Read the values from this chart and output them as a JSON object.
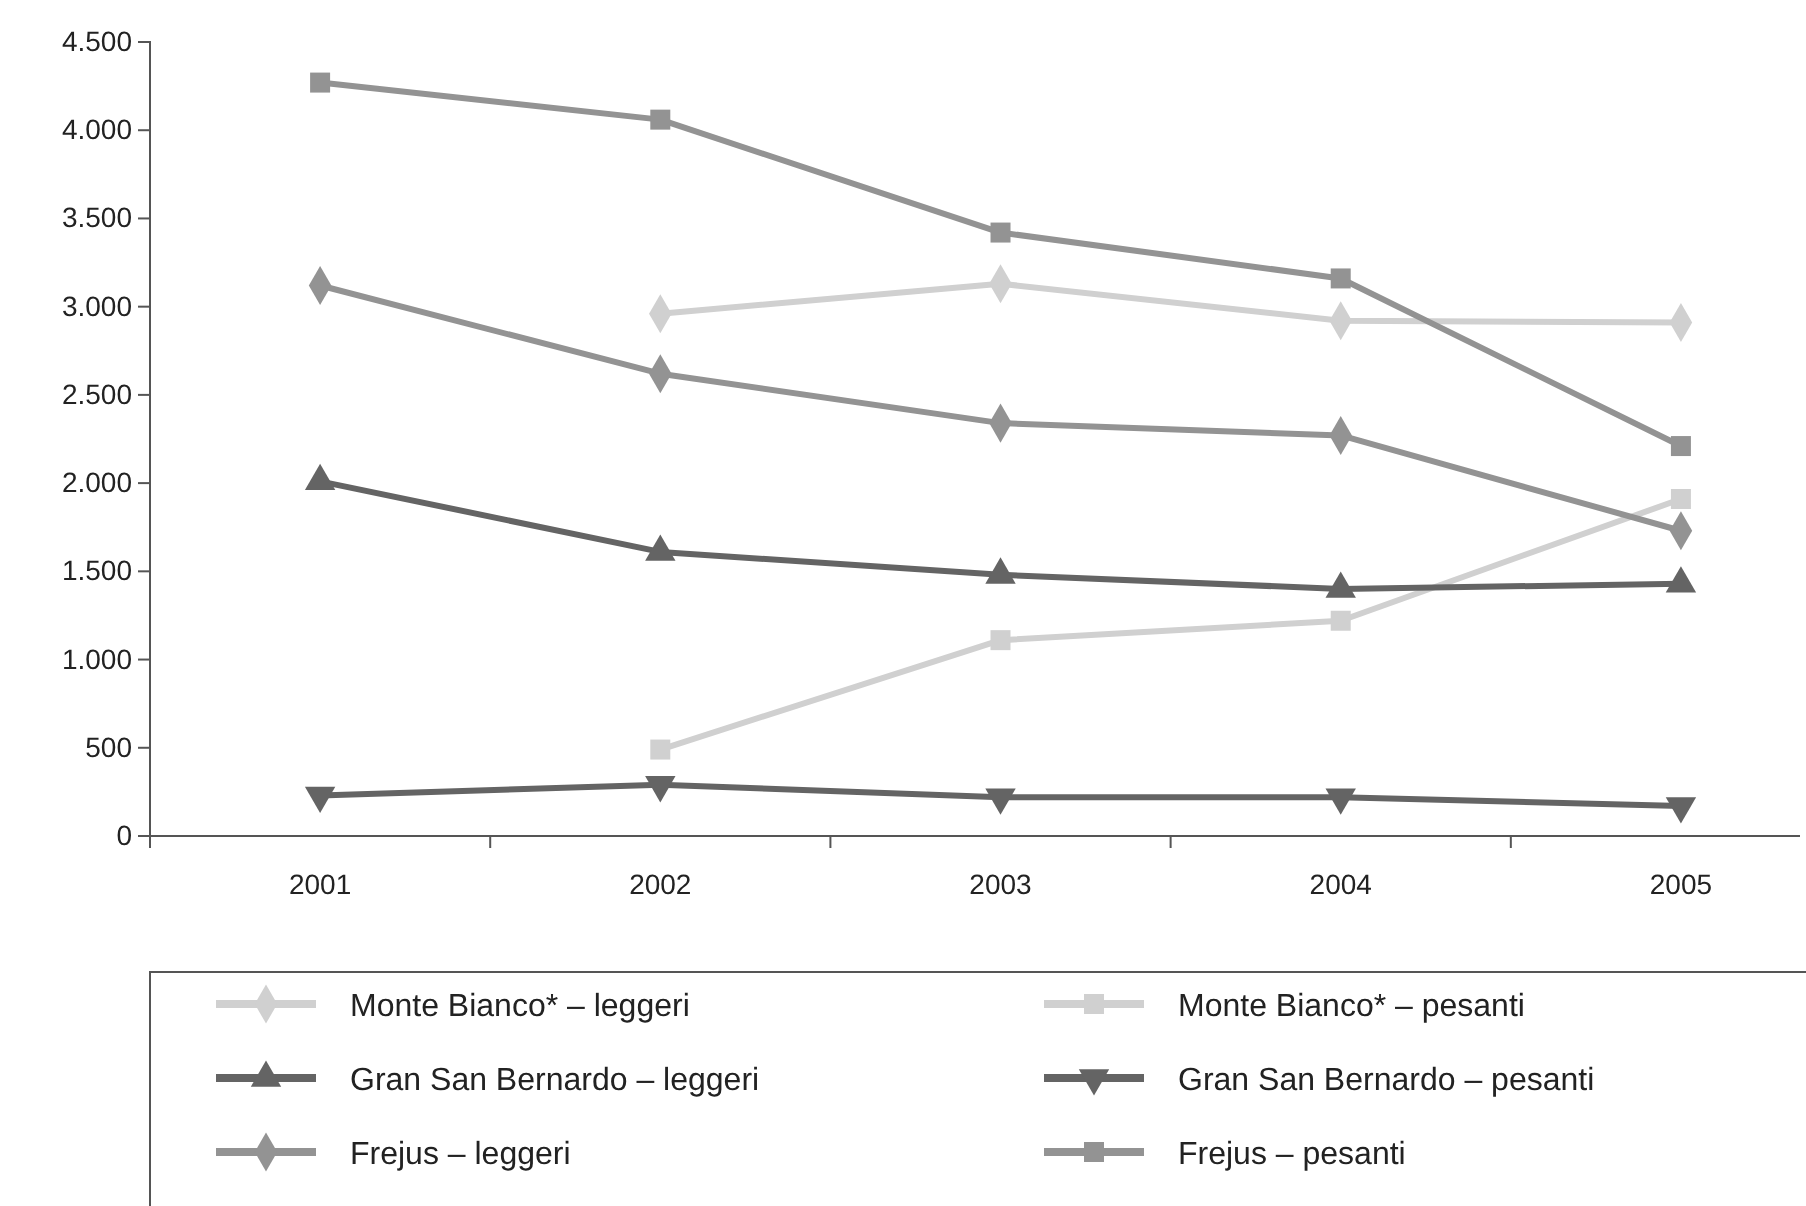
{
  "chart_data": {
    "type": "line",
    "categories": [
      "2001",
      "2002",
      "2003",
      "2004",
      "2005"
    ],
    "ylim": [
      0,
      4500
    ],
    "yticks": [
      0,
      500,
      {
        "value": 1000,
        "label": "1.000"
      },
      {
        "value": 1500,
        "label": "1.500"
      },
      {
        "value": 2000,
        "label": "2.000"
      },
      {
        "value": 2500,
        "label": "2.500"
      },
      {
        "value": 3000,
        "label": "3.000"
      },
      {
        "value": 3500,
        "label": "3.500"
      },
      {
        "value": 4000,
        "label": "4.000"
      },
      {
        "value": 4500,
        "label": "4.500"
      }
    ],
    "grid": false,
    "legend": "bottom",
    "series": [
      {
        "name": "Monte Bianco* – leggeri",
        "color": "#d0d0d0",
        "marker": "diamond",
        "values": [
          null,
          2960,
          3130,
          2920,
          2910
        ]
      },
      {
        "name": "Monte Bianco* – pesanti",
        "color": "#d0d0d0",
        "marker": "square",
        "values": [
          null,
          490,
          1110,
          1220,
          1910
        ]
      },
      {
        "name": "Gran San Bernardo – leggeri",
        "color": "#646464",
        "marker": "triangle",
        "values": [
          2010,
          1610,
          1480,
          1400,
          1430
        ]
      },
      {
        "name": "Gran San Bernardo – pesanti",
        "color": "#646464",
        "marker": "triangle-down",
        "values": [
          230,
          290,
          220,
          220,
          170
        ]
      },
      {
        "name": "Frejus – leggeri",
        "color": "#939393",
        "marker": "diamond",
        "values": [
          3120,
          2620,
          2340,
          2270,
          1730
        ]
      },
      {
        "name": "Frejus – pesanti",
        "color": "#939393",
        "marker": "square",
        "values": [
          4270,
          4060,
          3420,
          3160,
          2210
        ]
      }
    ]
  }
}
